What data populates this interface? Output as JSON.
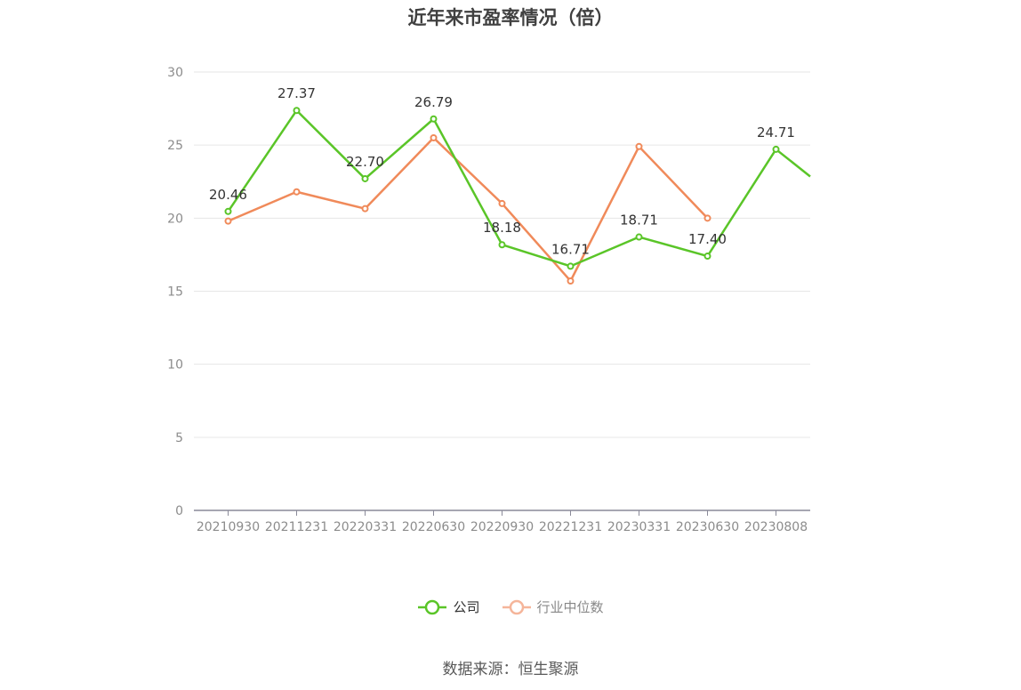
{
  "title": "近年来市盈率情况（倍）",
  "source": "数据来源：恒生聚源",
  "colors": {
    "company": "#5ac528",
    "industry": "#f08a5a",
    "grid": "#e6e6e6",
    "axis": "#8a8a99"
  },
  "legend": [
    {
      "name": "公司",
      "color": "#5ac528",
      "text_color": "#333333"
    },
    {
      "name": "行业中位数",
      "color": "#f5b59a",
      "text_color": "#888888"
    }
  ],
  "chart_data": {
    "type": "line",
    "categories": [
      "20210930",
      "20211231",
      "20220331",
      "20220630",
      "20220930",
      "20221231",
      "20230331",
      "20230630",
      "20230808"
    ],
    "ylim": [
      0,
      30
    ],
    "yticks": [
      0,
      5,
      10,
      15,
      20,
      25,
      30
    ],
    "grid": true,
    "legend_position": "bottom",
    "series": [
      {
        "name": "公司",
        "values": [
          20.46,
          27.37,
          22.7,
          26.79,
          18.18,
          16.71,
          18.71,
          17.4,
          24.71
        ],
        "labels": [
          "20.46",
          "27.37",
          "22.70",
          "26.79",
          "18.18",
          "16.71",
          "18.71",
          "17.40",
          "24.71"
        ],
        "trailing_value": 22.85
      },
      {
        "name": "行业中位数",
        "values": [
          19.8,
          21.8,
          20.65,
          25.5,
          21.0,
          15.7,
          24.9,
          20.0,
          null
        ]
      }
    ]
  }
}
